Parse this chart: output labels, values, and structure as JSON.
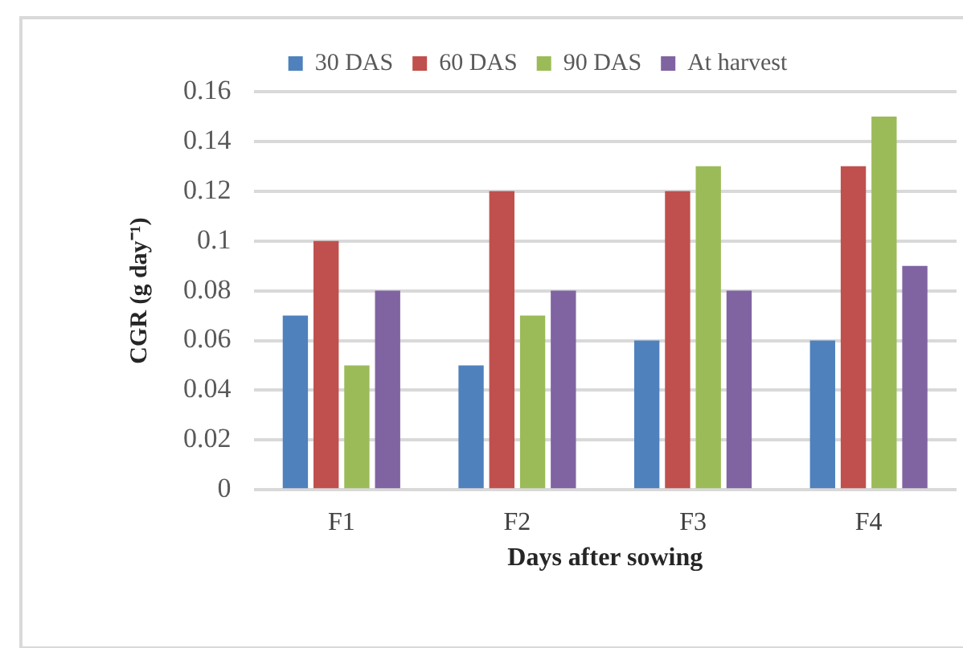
{
  "chart_data": {
    "type": "bar",
    "xlabel": "Days after sowing",
    "ylabel": "CGR (g day⁻¹)",
    "categories": [
      "F1",
      "F2",
      "F3",
      "F4"
    ],
    "series": [
      {
        "name": "30 DAS",
        "color": "#4f81bd",
        "values": [
          0.07,
          0.05,
          0.06,
          0.06
        ]
      },
      {
        "name": "60 DAS",
        "color": "#c0504d",
        "values": [
          0.1,
          0.12,
          0.12,
          0.13
        ]
      },
      {
        "name": "90 DAS",
        "color": "#9bbb59",
        "values": [
          0.05,
          0.07,
          0.13,
          0.15
        ]
      },
      {
        "name": "At harvest",
        "color": "#8064a2",
        "values": [
          0.08,
          0.08,
          0.08,
          0.09
        ]
      }
    ],
    "ylim": [
      0,
      0.16
    ],
    "yticks": [
      0,
      0.02,
      0.04,
      0.06,
      0.08,
      {
        "value": 0.1,
        "label": "0.1"
      },
      0.12,
      0.14,
      0.16
    ],
    "grid": "y",
    "legend": "top"
  }
}
